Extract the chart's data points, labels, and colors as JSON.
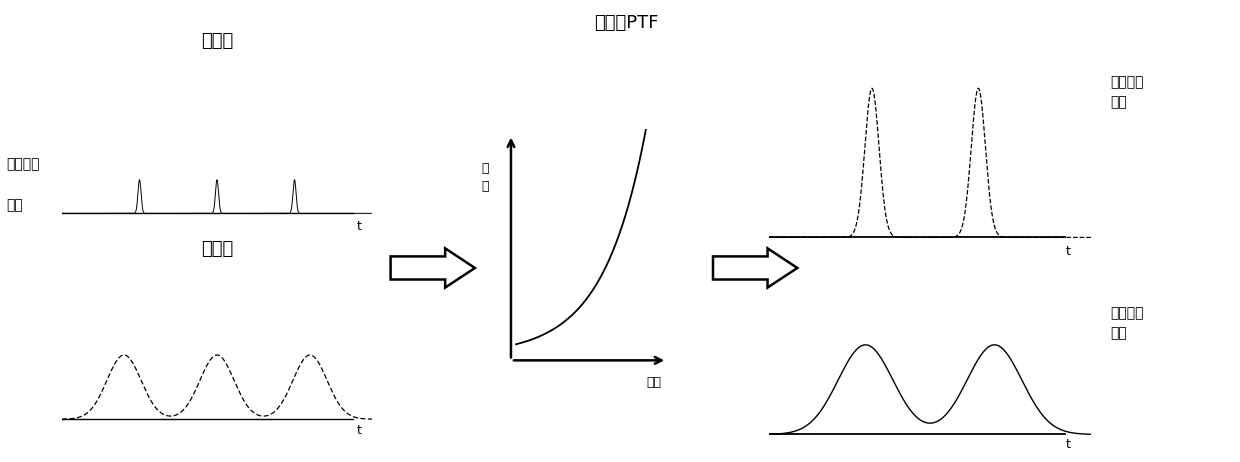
{
  "bg_color": "#ffffff",
  "label_no_dispersion": "无色散",
  "label_with_dispersion": "有色散",
  "label_avg_power": "平均功率",
  "label_same": "相同",
  "label_nonlinear": "非线性PTF",
  "label_gain": "增\n益",
  "label_power_axis": "功率",
  "label_high_power": "平均功率\n较高",
  "label_low_power": "平均功率\n较低",
  "label_t": "t"
}
